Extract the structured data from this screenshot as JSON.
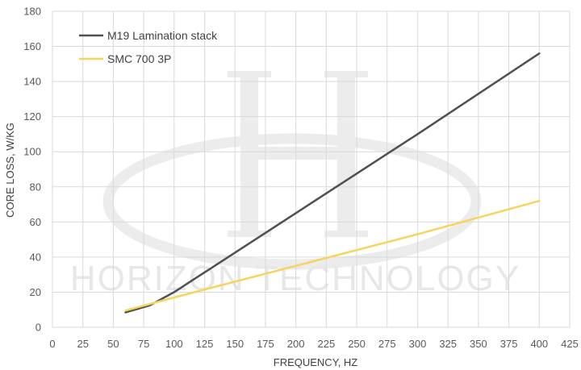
{
  "chart_data": {
    "type": "line",
    "xlabel": "FREQUENCY, HZ",
    "ylabel": "CORE LOSS, W/KG",
    "xlim": [
      0,
      425
    ],
    "ylim": [
      0,
      180
    ],
    "x_ticks": [
      0,
      25,
      50,
      75,
      100,
      125,
      150,
      175,
      200,
      225,
      250,
      275,
      300,
      325,
      350,
      375,
      400,
      425
    ],
    "y_ticks": [
      0,
      20,
      40,
      60,
      80,
      100,
      120,
      140,
      160,
      180
    ],
    "grid": "vertical and horizontal major gridlines",
    "legend_position": "top-left",
    "watermark": "HORIZON TECHNOLOGY",
    "series": [
      {
        "name": "M19 Lamination stack",
        "color": "#505050",
        "x": [
          60,
          80,
          100,
          200,
          300,
          400
        ],
        "y": [
          8.5,
          12.5,
          20,
          65,
          110,
          156
        ]
      },
      {
        "name": "SMC 700 3P",
        "color": "#f6d45e",
        "x": [
          60,
          100,
          200,
          300,
          400
        ],
        "y": [
          9.5,
          17,
          35,
          53,
          72
        ]
      }
    ]
  }
}
